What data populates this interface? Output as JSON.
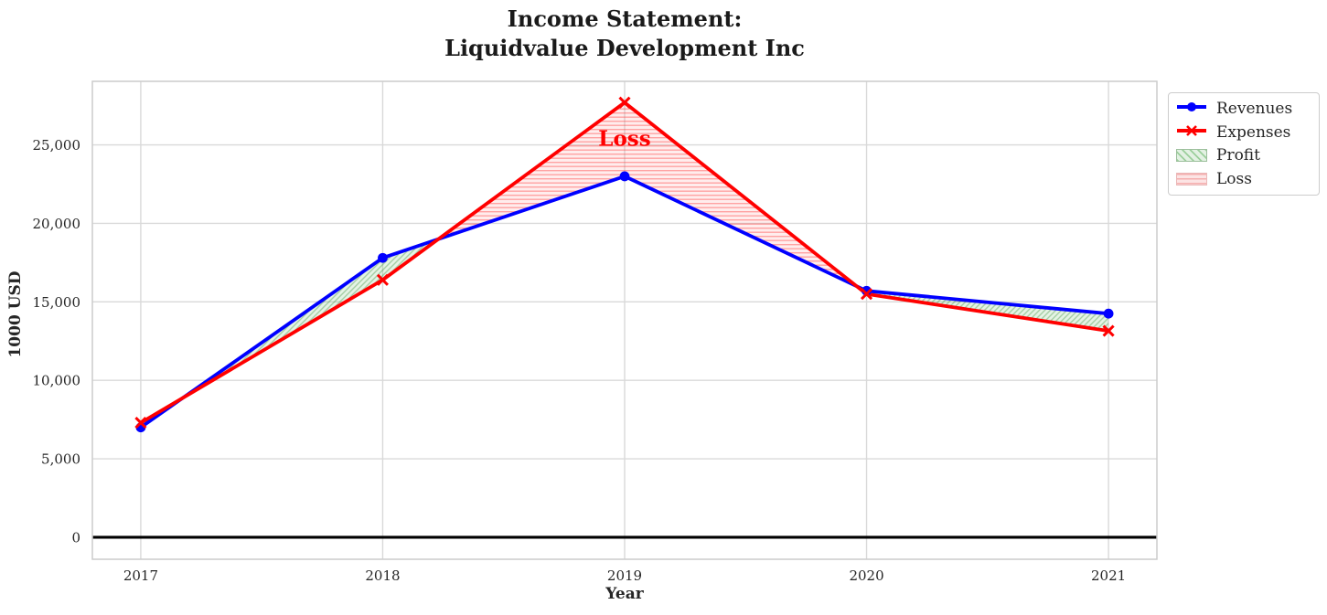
{
  "title": "Income Statement:\nLiquidvalue Development Inc",
  "chart_data": {
    "type": "line",
    "x": [
      2017,
      2018,
      2019,
      2020,
      2021
    ],
    "xticks": [
      2017,
      2018,
      2019,
      2020,
      2021
    ],
    "yticks": [
      0,
      5000,
      10000,
      15000,
      20000,
      25000
    ],
    "xlim": [
      2016.8,
      2021.2
    ],
    "ylim": [
      -1400,
      29050
    ],
    "xlabel": "Year",
    "ylabel": "1000 USD",
    "grid": true,
    "zero_line": true,
    "legend_position": "outside-right",
    "series": [
      {
        "name": "Revenues",
        "color": "#0000ff",
        "marker": "circle",
        "values": [
          7000,
          17800,
          23000,
          15700,
          14250
        ]
      },
      {
        "name": "Expenses",
        "color": "#ff0000",
        "marker": "x",
        "values": [
          7300,
          16400,
          27700,
          15500,
          13150
        ]
      }
    ],
    "fills": [
      {
        "name": "Profit",
        "condition": "revenues_above_expenses",
        "color": "#2e8b2e",
        "hatch": "diagonal"
      },
      {
        "name": "Loss",
        "condition": "expenses_above_revenues",
        "color": "#ff4d4d",
        "hatch": "horizontal"
      }
    ],
    "annotation": {
      "text": "Loss",
      "x": 2019,
      "y": 25400,
      "color": "#ff0000"
    }
  },
  "legend": {
    "items": [
      {
        "label": "Revenues",
        "swatch": "line-circle",
        "color": "#0000ff"
      },
      {
        "label": "Expenses",
        "swatch": "line-x",
        "color": "#ff0000"
      },
      {
        "label": "Profit",
        "swatch": "patch-diagonal",
        "color": "#2e8b2e"
      },
      {
        "label": "Loss",
        "swatch": "patch-horizontal",
        "color": "#ff4d4d"
      }
    ]
  },
  "colors": {
    "grid": "#d9d9d9",
    "axis_border": "#cccccc",
    "tick_text": "#262626",
    "title_text": "#1a1a1a",
    "zero_line": "#000000"
  }
}
